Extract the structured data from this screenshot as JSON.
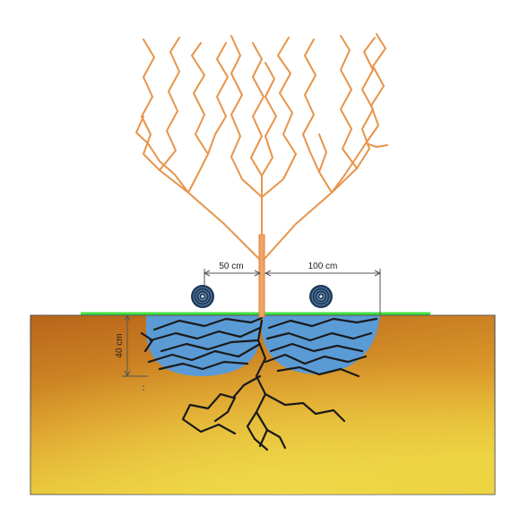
{
  "diagram": {
    "dimension_labels": {
      "left_distance": "50 cm",
      "right_distance": "100 cm",
      "depth": "40 cm"
    },
    "colors": {
      "plant": "#e8944a",
      "soil_top": "#b8651a",
      "soil_bottom": "#e8c23a",
      "wet_zone": "#5b9bd5",
      "roots": "#1a1a1a",
      "mulch_line": "#3ee03e",
      "emitter": "#1e3a5c",
      "dimension_line": "#555555"
    },
    "icons": {
      "emitter": "drip-emitter-icon"
    }
  }
}
